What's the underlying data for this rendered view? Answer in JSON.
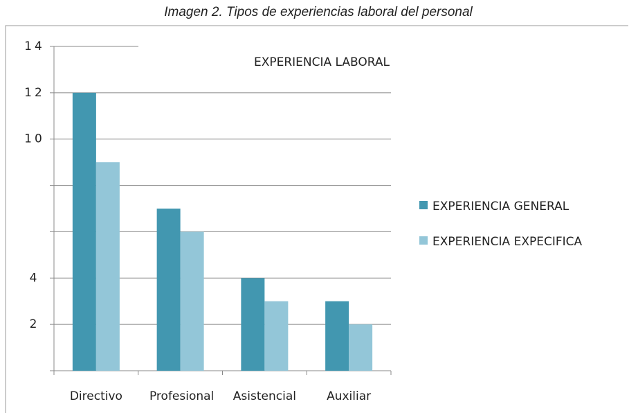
{
  "chart_data": {
    "type": "bar",
    "caption": "Imagen 2. Tipos de experiencias laboral del personal",
    "title": "EXPERIENCIA LABORAL",
    "categories": [
      "Directivo",
      "Profesional",
      "Asistencial",
      "Auxiliar"
    ],
    "series": [
      {
        "name": "EXPERIENCIA GENERAL",
        "color": "#4297b0",
        "values": [
          12,
          7,
          4,
          3
        ]
      },
      {
        "name": "EXPERIENCIA EXPECIFICA",
        "color": "#93c6d8",
        "values": [
          9,
          6,
          3,
          2
        ]
      }
    ],
    "ylim": [
      0,
      14
    ],
    "yticks": [
      {
        "value": 14,
        "label": "14"
      },
      {
        "value": 12,
        "label": "12"
      },
      {
        "value": 10,
        "label": "10"
      },
      {
        "value": 8,
        "label": null
      },
      {
        "value": 6,
        "label": null
      },
      {
        "value": 4,
        "label": "4"
      },
      {
        "value": 2,
        "label": "2"
      },
      {
        "value": 0,
        "label": null
      }
    ],
    "grid": true,
    "legend": "right"
  }
}
